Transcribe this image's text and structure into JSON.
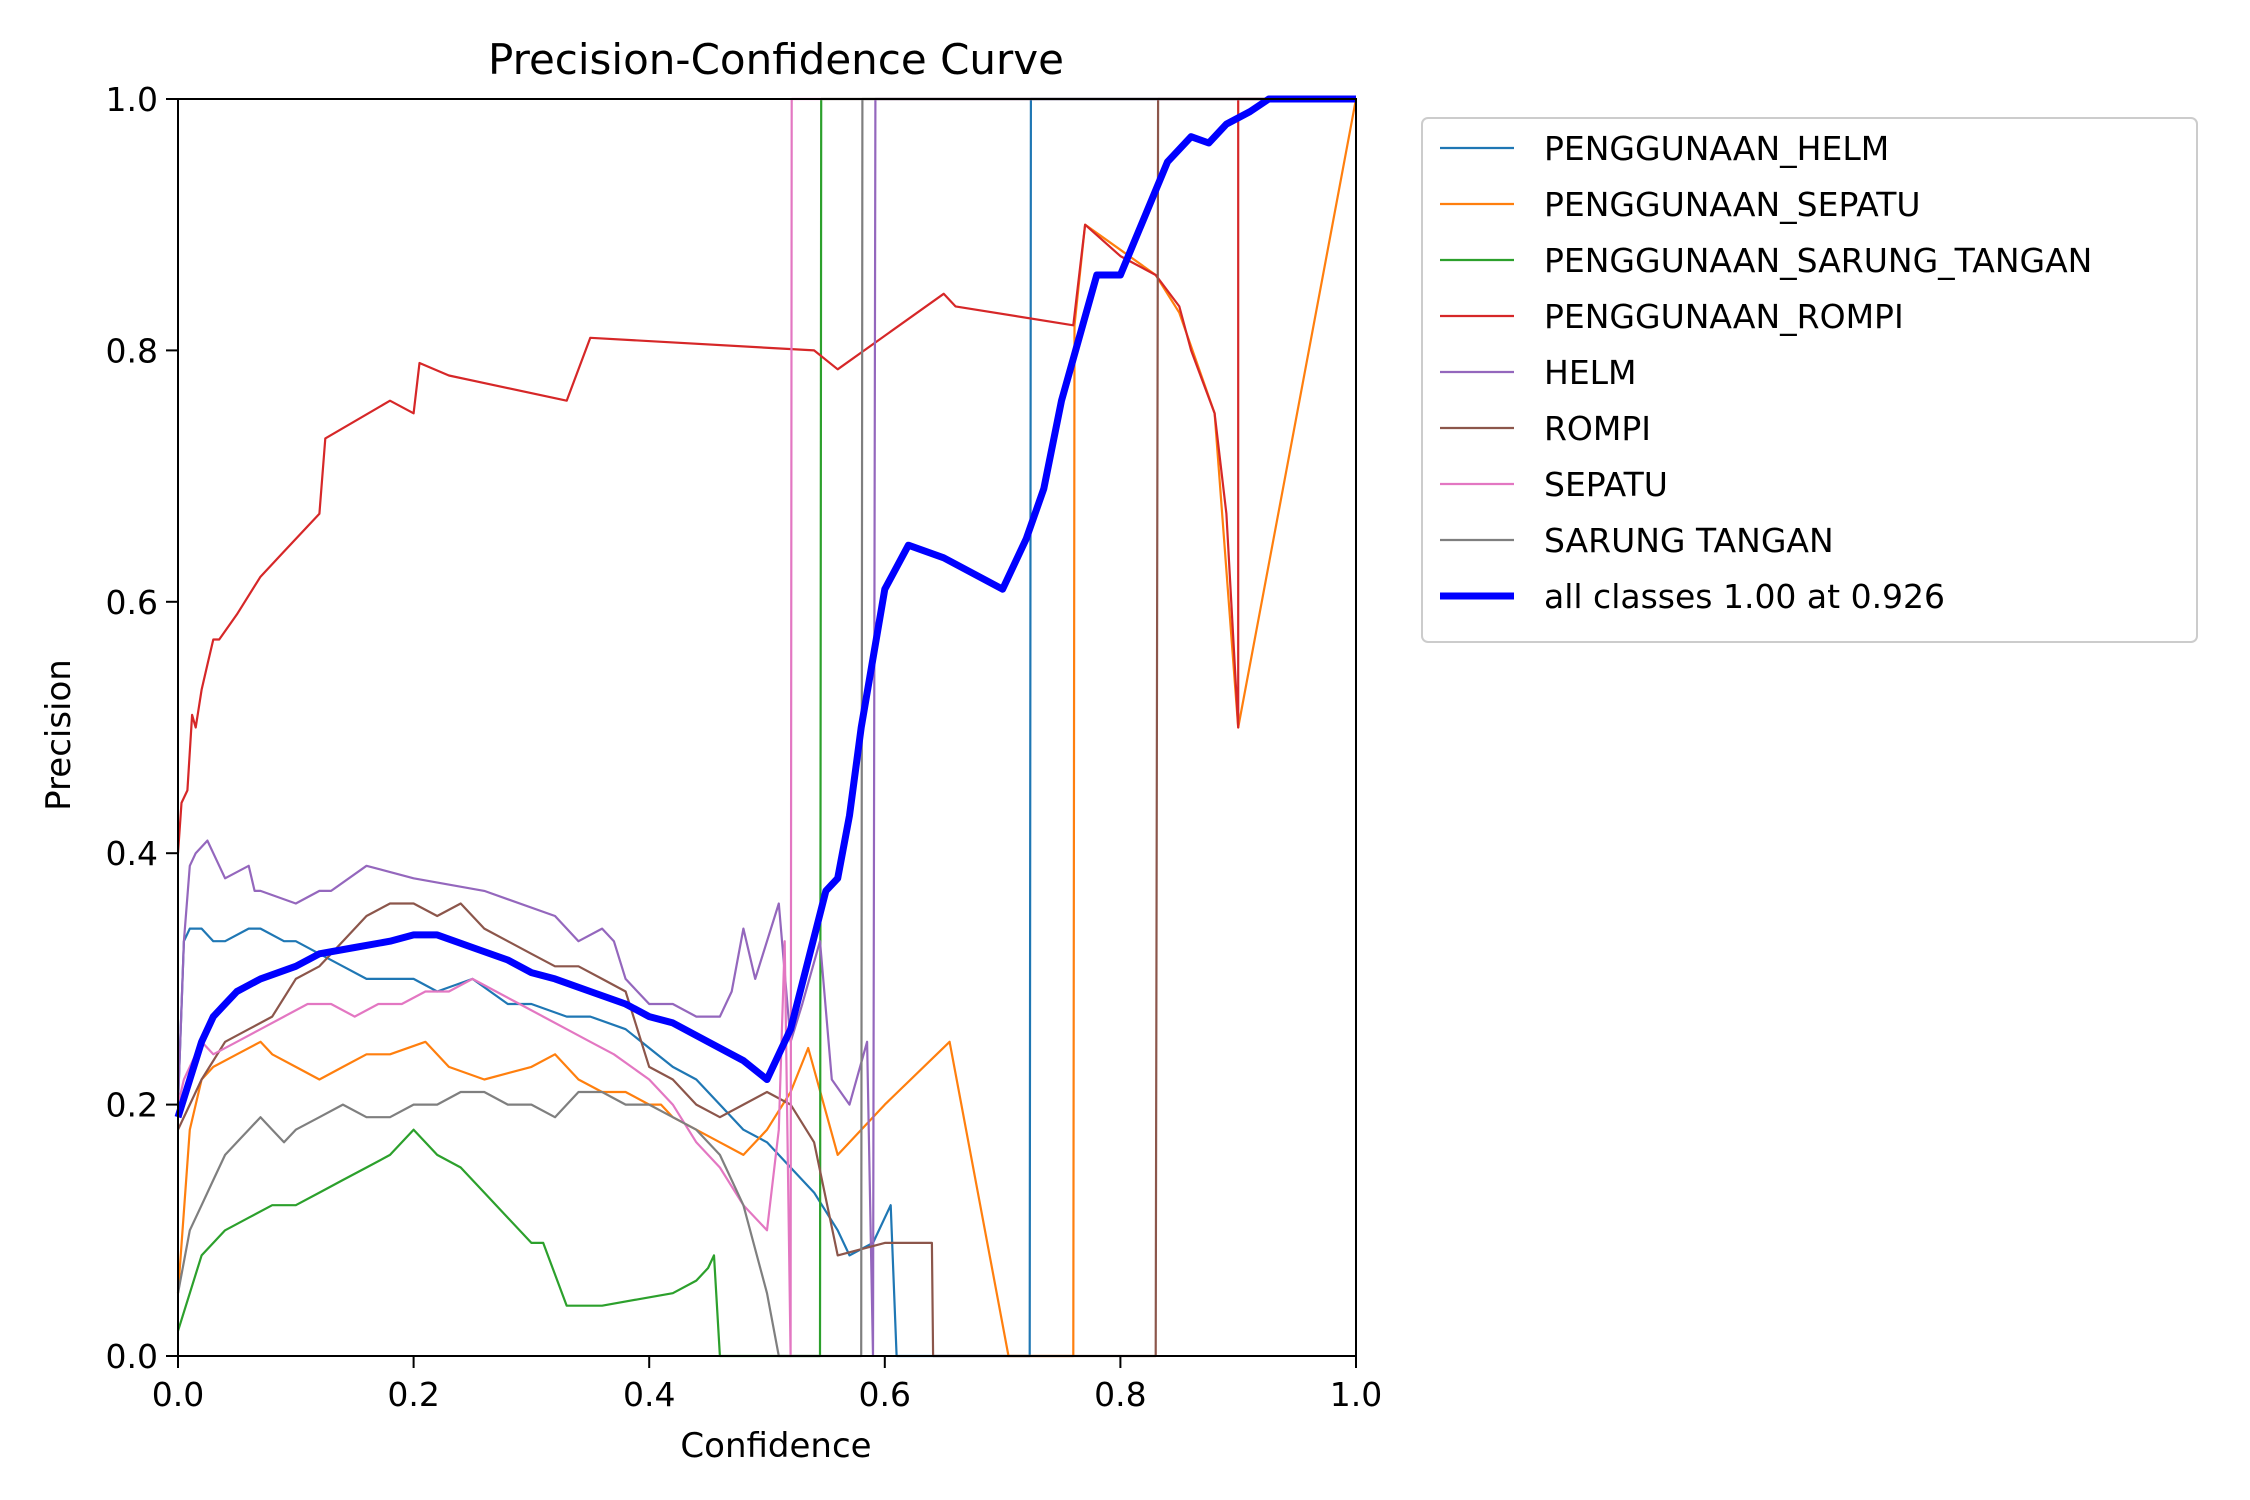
{
  "chart_data": {
    "type": "line",
    "title": "Precision-Confidence Curve",
    "xlabel": "Confidence",
    "ylabel": "Precision",
    "xlim": [
      0.0,
      1.0
    ],
    "ylim": [
      0.0,
      1.0
    ],
    "xticks": [
      "0.0",
      "0.2",
      "0.4",
      "0.6",
      "0.8",
      "1.0"
    ],
    "yticks": [
      "0.0",
      "0.2",
      "0.4",
      "0.6",
      "0.8",
      "1.0"
    ],
    "grid": false,
    "legend_position": "outside-top-right",
    "series": [
      {
        "name": "PENGGUNAAN_HELM",
        "color": "#1f77b4",
        "x": [
          0.0,
          0.005,
          0.01,
          0.02,
          0.03,
          0.04,
          0.06,
          0.07,
          0.09,
          0.1,
          0.12,
          0.14,
          0.16,
          0.2,
          0.22,
          0.25,
          0.28,
          0.3,
          0.33,
          0.35,
          0.38,
          0.42,
          0.44,
          0.46,
          0.48,
          0.5,
          0.52,
          0.54,
          0.56,
          0.57,
          0.59,
          0.605,
          0.61,
          0.7,
          0.723,
          0.724,
          1.0
        ],
        "y": [
          0.2,
          0.33,
          0.34,
          0.34,
          0.33,
          0.33,
          0.34,
          0.34,
          0.33,
          0.33,
          0.32,
          0.31,
          0.3,
          0.3,
          0.29,
          0.3,
          0.28,
          0.28,
          0.27,
          0.27,
          0.26,
          0.23,
          0.22,
          0.2,
          0.18,
          0.17,
          0.15,
          0.13,
          0.1,
          0.08,
          0.09,
          0.12,
          0.0,
          0.0,
          0.0,
          1.0,
          1.0
        ]
      },
      {
        "name": "PENGGUNAAN_SEPATU",
        "color": "#ff7f0e",
        "x": [
          0.0,
          0.01,
          0.02,
          0.03,
          0.05,
          0.07,
          0.08,
          0.1,
          0.12,
          0.14,
          0.16,
          0.18,
          0.21,
          0.23,
          0.26,
          0.3,
          0.32,
          0.34,
          0.36,
          0.38,
          0.4,
          0.41,
          0.42,
          0.44,
          0.46,
          0.48,
          0.5,
          0.52,
          0.535,
          0.56,
          0.6,
          0.655,
          0.705,
          0.76,
          0.761,
          0.77,
          0.8,
          0.83,
          0.85,
          0.88,
          0.9,
          1.0
        ],
        "y": [
          0.05,
          0.18,
          0.22,
          0.23,
          0.24,
          0.25,
          0.24,
          0.23,
          0.22,
          0.23,
          0.24,
          0.24,
          0.25,
          0.23,
          0.22,
          0.23,
          0.24,
          0.22,
          0.21,
          0.21,
          0.2,
          0.2,
          0.19,
          0.18,
          0.17,
          0.16,
          0.18,
          0.21,
          0.245,
          0.16,
          0.2,
          0.25,
          0.0,
          0.0,
          0.82,
          0.9,
          0.88,
          0.86,
          0.83,
          0.75,
          0.5,
          1.0
        ]
      },
      {
        "name": "PENGGUNAAN_SARUNG_TANGAN",
        "color": "#2ca02c",
        "x": [
          0.0,
          0.01,
          0.02,
          0.04,
          0.06,
          0.08,
          0.1,
          0.12,
          0.14,
          0.16,
          0.18,
          0.2,
          0.22,
          0.24,
          0.26,
          0.28,
          0.3,
          0.31,
          0.33,
          0.36,
          0.39,
          0.42,
          0.44,
          0.45,
          0.455,
          0.46,
          0.53,
          0.54,
          0.545,
          0.546,
          1.0
        ],
        "y": [
          0.02,
          0.05,
          0.08,
          0.1,
          0.11,
          0.12,
          0.12,
          0.13,
          0.14,
          0.15,
          0.16,
          0.18,
          0.16,
          0.15,
          0.13,
          0.11,
          0.09,
          0.09,
          0.04,
          0.04,
          0.045,
          0.05,
          0.06,
          0.07,
          0.08,
          0.0,
          0.0,
          0.0,
          0.0,
          1.0,
          1.0
        ]
      },
      {
        "name": "PENGGUNAAN_ROMPI",
        "color": "#d62728",
        "x": [
          0.0,
          0.003,
          0.008,
          0.012,
          0.015,
          0.02,
          0.025,
          0.03,
          0.035,
          0.05,
          0.07,
          0.09,
          0.12,
          0.125,
          0.18,
          0.2,
          0.205,
          0.23,
          0.33,
          0.35,
          0.54,
          0.56,
          0.65,
          0.66,
          0.76,
          0.77,
          0.8,
          0.83,
          0.85,
          0.86,
          0.88,
          0.89,
          0.9,
          0.9,
          1.0
        ],
        "y": [
          0.4,
          0.44,
          0.45,
          0.51,
          0.5,
          0.53,
          0.55,
          0.57,
          0.57,
          0.59,
          0.62,
          0.64,
          0.67,
          0.73,
          0.76,
          0.75,
          0.79,
          0.78,
          0.76,
          0.81,
          0.8,
          0.785,
          0.845,
          0.835,
          0.82,
          0.9,
          0.875,
          0.86,
          0.835,
          0.8,
          0.75,
          0.67,
          0.5,
          1.0,
          1.0
        ]
      },
      {
        "name": "HELM",
        "color": "#9467bd",
        "x": [
          0.0,
          0.005,
          0.01,
          0.015,
          0.02,
          0.025,
          0.03,
          0.04,
          0.06,
          0.065,
          0.07,
          0.1,
          0.12,
          0.13,
          0.16,
          0.2,
          0.26,
          0.32,
          0.34,
          0.36,
          0.37,
          0.38,
          0.39,
          0.4,
          0.42,
          0.44,
          0.46,
          0.47,
          0.48,
          0.49,
          0.5,
          0.51,
          0.52,
          0.53,
          0.545,
          0.555,
          0.57,
          0.585,
          0.59,
          0.592,
          1.0
        ],
        "y": [
          0.2,
          0.33,
          0.39,
          0.4,
          0.405,
          0.41,
          0.4,
          0.38,
          0.39,
          0.37,
          0.37,
          0.36,
          0.37,
          0.37,
          0.39,
          0.38,
          0.37,
          0.35,
          0.33,
          0.34,
          0.33,
          0.3,
          0.29,
          0.28,
          0.28,
          0.27,
          0.27,
          0.29,
          0.34,
          0.3,
          0.33,
          0.36,
          0.25,
          0.28,
          0.33,
          0.22,
          0.2,
          0.25,
          0.0,
          1.0,
          1.0
        ]
      },
      {
        "name": "ROMPI",
        "color": "#8c564b",
        "x": [
          0.0,
          0.01,
          0.02,
          0.04,
          0.06,
          0.08,
          0.1,
          0.12,
          0.14,
          0.16,
          0.18,
          0.2,
          0.22,
          0.24,
          0.26,
          0.28,
          0.3,
          0.32,
          0.34,
          0.36,
          0.38,
          0.4,
          0.42,
          0.44,
          0.46,
          0.48,
          0.5,
          0.52,
          0.54,
          0.56,
          0.58,
          0.6,
          0.64,
          0.641,
          0.83,
          0.832,
          1.0
        ],
        "y": [
          0.18,
          0.2,
          0.22,
          0.25,
          0.26,
          0.27,
          0.3,
          0.31,
          0.33,
          0.35,
          0.36,
          0.36,
          0.35,
          0.36,
          0.34,
          0.33,
          0.32,
          0.31,
          0.31,
          0.3,
          0.29,
          0.23,
          0.22,
          0.2,
          0.19,
          0.2,
          0.21,
          0.2,
          0.17,
          0.08,
          0.085,
          0.09,
          0.09,
          0.0,
          0.0,
          1.0,
          1.0
        ]
      },
      {
        "name": "SEPATU",
        "color": "#e377c2",
        "x": [
          0.0,
          0.005,
          0.01,
          0.02,
          0.03,
          0.05,
          0.07,
          0.09,
          0.11,
          0.13,
          0.15,
          0.17,
          0.19,
          0.21,
          0.23,
          0.25,
          0.27,
          0.29,
          0.31,
          0.33,
          0.35,
          0.37,
          0.4,
          0.42,
          0.44,
          0.46,
          0.48,
          0.5,
          0.51,
          0.515,
          0.52,
          0.521,
          1.0
        ],
        "y": [
          0.2,
          0.22,
          0.23,
          0.25,
          0.24,
          0.25,
          0.26,
          0.27,
          0.28,
          0.28,
          0.27,
          0.28,
          0.28,
          0.29,
          0.29,
          0.3,
          0.29,
          0.28,
          0.27,
          0.26,
          0.25,
          0.24,
          0.22,
          0.2,
          0.17,
          0.15,
          0.12,
          0.1,
          0.18,
          0.33,
          0.0,
          1.0,
          1.0
        ]
      },
      {
        "name": "SARUNG TANGAN",
        "color": "#7f7f7f",
        "x": [
          0.0,
          0.01,
          0.02,
          0.03,
          0.04,
          0.05,
          0.06,
          0.07,
          0.08,
          0.09,
          0.1,
          0.12,
          0.14,
          0.16,
          0.18,
          0.2,
          0.22,
          0.24,
          0.26,
          0.28,
          0.3,
          0.32,
          0.34,
          0.36,
          0.38,
          0.4,
          0.42,
          0.44,
          0.46,
          0.48,
          0.5,
          0.51,
          0.575,
          0.58,
          0.581,
          1.0
        ],
        "y": [
          0.05,
          0.1,
          0.12,
          0.14,
          0.16,
          0.17,
          0.18,
          0.19,
          0.18,
          0.17,
          0.18,
          0.19,
          0.2,
          0.19,
          0.19,
          0.2,
          0.2,
          0.21,
          0.21,
          0.2,
          0.2,
          0.19,
          0.21,
          0.21,
          0.2,
          0.2,
          0.19,
          0.18,
          0.16,
          0.12,
          0.05,
          0.0,
          0.0,
          0.0,
          1.0,
          1.0
        ]
      },
      {
        "name": "all classes 1.00 at 0.926",
        "color": "#0000ff",
        "thick": true,
        "x": [
          0.0,
          0.01,
          0.02,
          0.03,
          0.04,
          0.05,
          0.06,
          0.07,
          0.1,
          0.12,
          0.15,
          0.18,
          0.2,
          0.22,
          0.25,
          0.28,
          0.3,
          0.32,
          0.35,
          0.38,
          0.4,
          0.42,
          0.45,
          0.48,
          0.5,
          0.52,
          0.55,
          0.56,
          0.57,
          0.58,
          0.6,
          0.62,
          0.65,
          0.7,
          0.72,
          0.735,
          0.75,
          0.78,
          0.8,
          0.84,
          0.86,
          0.875,
          0.89,
          0.91,
          0.926,
          1.0
        ],
        "y": [
          0.19,
          0.22,
          0.25,
          0.27,
          0.28,
          0.29,
          0.295,
          0.3,
          0.31,
          0.32,
          0.325,
          0.33,
          0.335,
          0.335,
          0.325,
          0.315,
          0.305,
          0.3,
          0.29,
          0.28,
          0.27,
          0.265,
          0.25,
          0.235,
          0.22,
          0.26,
          0.37,
          0.38,
          0.43,
          0.5,
          0.61,
          0.645,
          0.635,
          0.61,
          0.65,
          0.69,
          0.76,
          0.86,
          0.86,
          0.95,
          0.97,
          0.965,
          0.98,
          0.99,
          1.0,
          1.0
        ]
      }
    ]
  }
}
